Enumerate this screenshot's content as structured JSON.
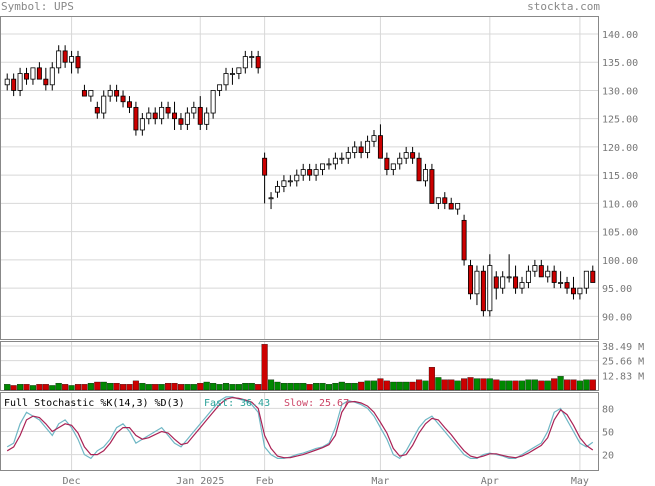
{
  "header": {
    "symbol_text": "Symbol: UPS",
    "brand_text": "stockta.com"
  },
  "price_axis_labels": [
    "140.00",
    "135.00",
    "130.00",
    "125.00",
    "120.00",
    "115.00",
    "110.00",
    "105.00",
    "100.00",
    "95.00",
    "90.00"
  ],
  "volume_axis_labels": [
    "38.49 M",
    "25.66 M",
    "12.83 M"
  ],
  "stoch_axis_labels": [
    "80",
    "50",
    "20"
  ],
  "x_axis_labels": [
    "Dec",
    "Jan 2025",
    "Feb",
    "Mar",
    "Apr",
    "May"
  ],
  "stoch_legend": {
    "title": "Full Stochastic %K(14,3) %D(3)",
    "fast_label": "Fast:",
    "fast_value": "36.43",
    "slow_label": "Slow:",
    "slow_value": "25.67"
  },
  "colors": {
    "up": "#ffffff",
    "down": "#cc0000",
    "vol_up": "#008800",
    "vol_down": "#cc0000",
    "fast_line": "#6fb7c5",
    "slow_line": "#aa2255",
    "grid": "#d8d8d8",
    "fast_text": "#2aa198",
    "slow_text": "#cc4466"
  },
  "chart_data": {
    "type": "candlestick",
    "symbol": "UPS",
    "x_ticks": [
      "Dec",
      "Jan 2025",
      "Feb",
      "Mar",
      "Apr",
      "May"
    ],
    "price_range": [
      86,
      143
    ],
    "candles_ohlc": [
      [
        131,
        133,
        130,
        132
      ],
      [
        132,
        133,
        129,
        130
      ],
      [
        130,
        134,
        129,
        133
      ],
      [
        133,
        134,
        131,
        132
      ],
      [
        132,
        134,
        131,
        134
      ],
      [
        134,
        135,
        132,
        132
      ],
      [
        132,
        134,
        130,
        131
      ],
      [
        131,
        135,
        130,
        134
      ],
      [
        134,
        138,
        133,
        137
      ],
      [
        137,
        138,
        134,
        135
      ],
      [
        135,
        137,
        133,
        136
      ],
      [
        136,
        137,
        133,
        134
      ],
      [
        130,
        131,
        129,
        129
      ],
      [
        129,
        130,
        128,
        130
      ],
      [
        127,
        128,
        125,
        126
      ],
      [
        126,
        130,
        125,
        129
      ],
      [
        129,
        131,
        128,
        130
      ],
      [
        130,
        131,
        128,
        129
      ],
      [
        129,
        130,
        127,
        128
      ],
      [
        128,
        129,
        126,
        127
      ],
      [
        127,
        128,
        122,
        123
      ],
      [
        123,
        126,
        122,
        125
      ],
      [
        125,
        127,
        124,
        126
      ],
      [
        126,
        127,
        124,
        125
      ],
      [
        125,
        128,
        124,
        127
      ],
      [
        127,
        128,
        125,
        126
      ],
      [
        126,
        128,
        123,
        125
      ],
      [
        125,
        126,
        123,
        124
      ],
      [
        124,
        127,
        123,
        126
      ],
      [
        126,
        128,
        125,
        127
      ],
      [
        127,
        129,
        123,
        124
      ],
      [
        124,
        127,
        123,
        126
      ],
      [
        126,
        130,
        125,
        130
      ],
      [
        130,
        131,
        129,
        131
      ],
      [
        131,
        134,
        130,
        133
      ],
      [
        133,
        134,
        131,
        133
      ],
      [
        133,
        134,
        132,
        134
      ],
      [
        134,
        137,
        133,
        136
      ],
      [
        136,
        137,
        134,
        136
      ],
      [
        136,
        137,
        133,
        134
      ],
      [
        118,
        119,
        110,
        115
      ],
      [
        111,
        112,
        109,
        111
      ],
      [
        112,
        114,
        111,
        113
      ],
      [
        113,
        115,
        112,
        114
      ],
      [
        114,
        115,
        113,
        114
      ],
      [
        114,
        116,
        113,
        115
      ],
      [
        115,
        117,
        114,
        116
      ],
      [
        116,
        117,
        114,
        115
      ],
      [
        115,
        117,
        114,
        116
      ],
      [
        116,
        117,
        115,
        117
      ],
      [
        117,
        118,
        116,
        117
      ],
      [
        117,
        119,
        116,
        118
      ],
      [
        118,
        119,
        117,
        118
      ],
      [
        118,
        120,
        117,
        119
      ],
      [
        119,
        121,
        118,
        120
      ],
      [
        120,
        121,
        118,
        119
      ],
      [
        119,
        122,
        118,
        121
      ],
      [
        121,
        123,
        120,
        122
      ],
      [
        122,
        124,
        119,
        118
      ],
      [
        118,
        119,
        115,
        116
      ],
      [
        116,
        117,
        115,
        117
      ],
      [
        117,
        119,
        116,
        118
      ],
      [
        118,
        120,
        117,
        119
      ],
      [
        119,
        120,
        117,
        118
      ],
      [
        118,
        119,
        114,
        114
      ],
      [
        114,
        117,
        113,
        116
      ],
      [
        116,
        117,
        110,
        110
      ],
      [
        110,
        111,
        109,
        111
      ],
      [
        111,
        112,
        109,
        110
      ],
      [
        110,
        111,
        109,
        109
      ],
      [
        109,
        110,
        108,
        110
      ],
      [
        107,
        108,
        99,
        100
      ],
      [
        99,
        100,
        93,
        94
      ],
      [
        94,
        99,
        92,
        98
      ],
      [
        98,
        99,
        90,
        91
      ],
      [
        91,
        101,
        90,
        99
      ],
      [
        97,
        98,
        93,
        95
      ],
      [
        95,
        98,
        94,
        97
      ],
      [
        97,
        101,
        96,
        97
      ],
      [
        97,
        99,
        94,
        95
      ],
      [
        95,
        97,
        94,
        96
      ],
      [
        96,
        99,
        95,
        98
      ],
      [
        98,
        100,
        97,
        99
      ],
      [
        99,
        100,
        97,
        97
      ],
      [
        97,
        99,
        96,
        98
      ],
      [
        98,
        99,
        95,
        96
      ],
      [
        96,
        98,
        95,
        96
      ],
      [
        96,
        97,
        94,
        95
      ],
      [
        95,
        97,
        93,
        94
      ],
      [
        94,
        95,
        93,
        95
      ],
      [
        95,
        98,
        94,
        98
      ],
      [
        98,
        99,
        96,
        96
      ]
    ],
    "volume_axis_m": [
      12.83,
      25.66,
      38.49
    ],
    "volume_m": [
      5,
      4,
      5,
      5,
      4,
      5,
      5,
      4,
      6,
      5,
      4,
      5,
      5,
      6,
      7,
      7,
      6,
      6,
      5,
      5,
      8,
      6,
      5,
      5,
      5,
      6,
      6,
      5,
      5,
      5,
      6,
      7,
      6,
      5,
      6,
      5,
      5,
      6,
      6,
      5,
      40,
      9,
      7,
      6,
      6,
      6,
      6,
      5,
      6,
      6,
      5,
      6,
      7,
      6,
      6,
      7,
      8,
      8,
      10,
      8,
      7,
      7,
      7,
      7,
      9,
      8,
      20,
      11,
      9,
      9,
      8,
      10,
      11,
      10,
      10,
      10,
      9,
      8,
      8,
      8,
      8,
      9,
      9,
      8,
      8,
      10,
      12,
      9,
      9,
      8,
      9,
      9
    ],
    "stoch_fast": [
      30,
      35,
      60,
      75,
      70,
      65,
      55,
      45,
      60,
      65,
      55,
      40,
      20,
      15,
      25,
      30,
      40,
      55,
      60,
      50,
      35,
      40,
      45,
      50,
      55,
      45,
      35,
      30,
      40,
      50,
      60,
      70,
      80,
      90,
      95,
      95,
      92,
      90,
      85,
      75,
      30,
      20,
      15,
      15,
      17,
      20,
      22,
      25,
      28,
      30,
      35,
      55,
      85,
      90,
      88,
      85,
      80,
      70,
      55,
      40,
      20,
      15,
      25,
      40,
      55,
      65,
      70,
      60,
      50,
      40,
      30,
      20,
      15,
      15,
      20,
      22,
      20,
      18,
      15,
      15,
      20,
      25,
      30,
      35,
      50,
      75,
      80,
      65,
      50,
      35,
      30,
      36
    ],
    "stoch_slow": [
      25,
      30,
      45,
      65,
      70,
      68,
      60,
      50,
      55,
      60,
      58,
      48,
      30,
      20,
      20,
      25,
      35,
      48,
      55,
      55,
      45,
      40,
      42,
      46,
      50,
      48,
      40,
      33,
      35,
      45,
      55,
      65,
      75,
      85,
      92,
      94,
      93,
      91,
      88,
      80,
      45,
      28,
      18,
      16,
      16,
      18,
      20,
      23,
      26,
      29,
      33,
      45,
      75,
      88,
      89,
      87,
      83,
      75,
      62,
      48,
      28,
      18,
      20,
      32,
      48,
      60,
      67,
      65,
      55,
      46,
      35,
      25,
      18,
      16,
      18,
      21,
      21,
      19,
      17,
      16,
      18,
      22,
      27,
      32,
      42,
      65,
      78,
      72,
      58,
      42,
      32,
      26
    ]
  }
}
